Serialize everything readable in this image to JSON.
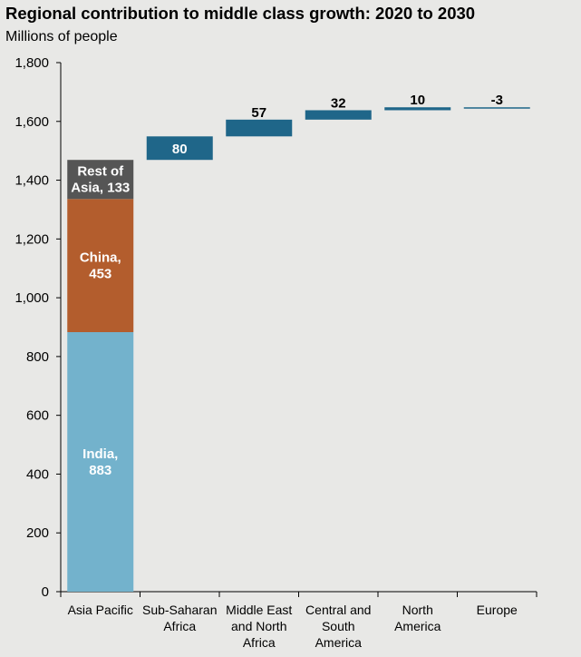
{
  "chart_data": {
    "type": "bar",
    "subtype": "waterfall",
    "title": "Regional contribution to middle class growth: 2020 to 2030",
    "ylabel": "Millions of people",
    "ylim": [
      0,
      1800
    ],
    "yticks": [
      "0",
      "200",
      "400",
      "600",
      "800",
      "1,000",
      "1,200",
      "1,400",
      "1,600",
      "1,800"
    ],
    "grid": false,
    "stacked_bar": {
      "category": "Asia Pacific",
      "segments": [
        {
          "name": "India",
          "value": 883,
          "label": [
            "India,",
            "883"
          ],
          "color": "#73b2cc"
        },
        {
          "name": "China",
          "value": 453,
          "label": [
            "China,",
            "453"
          ],
          "color": "#b35d2d"
        },
        {
          "name": "Rest of Asia",
          "value": 133,
          "label": [
            "Rest of",
            "Asia, 133"
          ],
          "color": "#555555"
        }
      ]
    },
    "floating_bars": [
      {
        "category": [
          "Sub-Saharan",
          "Africa"
        ],
        "value": 80,
        "label": "80"
      },
      {
        "category": [
          "Middle East",
          "and North",
          "Africa"
        ],
        "value": 57,
        "label": "57"
      },
      {
        "category": [
          "Central and",
          "South",
          "America"
        ],
        "value": 32,
        "label": "32"
      },
      {
        "category": [
          "North",
          "America"
        ],
        "value": 10,
        "label": "10"
      },
      {
        "category": [
          "Europe"
        ],
        "value": -3,
        "label": "-3"
      }
    ],
    "categories": [
      "Asia Pacific",
      "Sub-Saharan Africa",
      "Middle East and North Africa",
      "Central and South America",
      "North America",
      "Europe"
    ],
    "colors": {
      "floating": "#1f6689",
      "axis": "#000000",
      "background": "#e8e8e6"
    }
  }
}
